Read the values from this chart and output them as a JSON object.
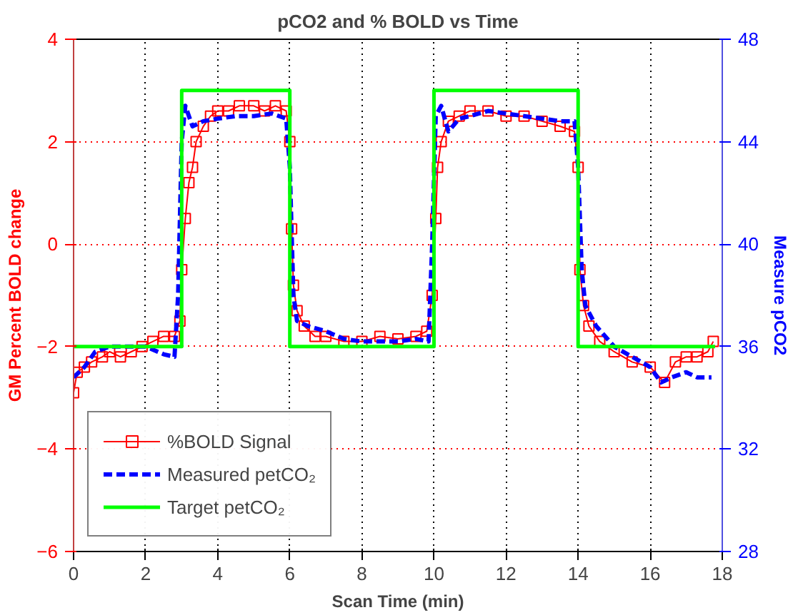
{
  "chart_data": {
    "type": "line",
    "title": "pCO2 and % BOLD vs Time",
    "xlabel": "Scan Time (min)",
    "ylabel": "GM Percent BOLD change",
    "y2label": "Measure pCO2",
    "xlim": [
      0,
      18
    ],
    "xticks": [
      0,
      2,
      4,
      6,
      8,
      10,
      12,
      14,
      16,
      18
    ],
    "ylim": [
      -6,
      4
    ],
    "yticks": [
      -6,
      -4,
      -2,
      0,
      2,
      4
    ],
    "y2lim": [
      28,
      48
    ],
    "y2ticks": [
      28,
      32,
      36,
      40,
      44,
      48
    ],
    "grid": true,
    "legend": "bottom left",
    "series": [
      {
        "name": "%BOLD Signal",
        "color": "#ff0000",
        "marker": "square",
        "line_style": "solid",
        "x": [
          0,
          0.1,
          0.3,
          0.5,
          0.8,
          1.0,
          1.3,
          1.6,
          1.9,
          2.2,
          2.5,
          2.8,
          2.95,
          3.0,
          3.1,
          3.2,
          3.3,
          3.4,
          3.6,
          3.8,
          4.0,
          4.3,
          4.6,
          5.0,
          5.3,
          5.6,
          5.9,
          6.0,
          6.05,
          6.1,
          6.2,
          6.4,
          6.7,
          7.0,
          7.5,
          8.0,
          8.5,
          9.0,
          9.5,
          9.8,
          9.95,
          10.05,
          10.1,
          10.2,
          10.4,
          10.7,
          11.0,
          11.5,
          12.0,
          12.5,
          13.0,
          13.5,
          13.9,
          14.0,
          14.05,
          14.15,
          14.3,
          14.6,
          15.0,
          15.5,
          16.0,
          16.4,
          16.7,
          17.0,
          17.3,
          17.6,
          17.75
        ],
        "values": [
          -2.9,
          -2.5,
          -2.4,
          -2.3,
          -2.2,
          -2.1,
          -2.2,
          -2.1,
          -2.0,
          -1.9,
          -1.8,
          -1.8,
          -1.5,
          -0.5,
          0.5,
          1.2,
          1.5,
          2.0,
          2.3,
          2.5,
          2.6,
          2.6,
          2.7,
          2.7,
          2.6,
          2.7,
          2.6,
          2.0,
          0.3,
          -0.8,
          -1.3,
          -1.6,
          -1.8,
          -1.8,
          -1.9,
          -1.9,
          -1.8,
          -1.85,
          -1.8,
          -1.7,
          -1.0,
          0.5,
          1.5,
          2.0,
          2.4,
          2.5,
          2.6,
          2.6,
          2.5,
          2.5,
          2.4,
          2.3,
          2.2,
          1.5,
          -0.5,
          -1.2,
          -1.6,
          -1.9,
          -2.1,
          -2.3,
          -2.4,
          -2.7,
          -2.3,
          -2.2,
          -2.2,
          -2.1,
          -1.9
        ]
      },
      {
        "name": "Measured petCO₂",
        "color": "#0000ff",
        "axis": "y2",
        "marker": "none",
        "line_style": "dashed",
        "x": [
          0,
          0.3,
          0.6,
          1.0,
          1.5,
          2.0,
          2.5,
          2.8,
          2.9,
          3.0,
          3.1,
          3.3,
          3.6,
          4.0,
          4.5,
          5.0,
          5.5,
          5.9,
          6.0,
          6.1,
          6.2,
          6.5,
          7.0,
          7.5,
          8.0,
          8.5,
          9.0,
          9.5,
          9.85,
          9.95,
          10.05,
          10.2,
          10.4,
          10.7,
          11.0,
          11.5,
          12.0,
          12.5,
          13.0,
          13.5,
          13.9,
          14.0,
          14.1,
          14.2,
          14.5,
          15.0,
          15.5,
          16.0,
          16.3,
          16.6,
          17.0,
          17.3,
          17.7
        ],
        "values": [
          34.8,
          35.2,
          35.8,
          36.0,
          36.0,
          36.0,
          35.7,
          35.6,
          38,
          44,
          45.4,
          44.6,
          44.8,
          44.9,
          45.0,
          45.0,
          45.1,
          44.9,
          43,
          38,
          37,
          36.8,
          36.6,
          36.3,
          36.2,
          36.2,
          36.2,
          36.3,
          36.2,
          40,
          45,
          45.4,
          44.4,
          44.9,
          45.0,
          45.2,
          45.1,
          45.0,
          44.9,
          44.8,
          44.8,
          43,
          39,
          37.6,
          36.8,
          36.0,
          35.6,
          35.2,
          34.6,
          34.8,
          35.0,
          34.8,
          34.8
        ]
      },
      {
        "name": "Target petCO₂",
        "color": "#00ff00",
        "axis": "y2",
        "marker": "none",
        "line_style": "solid",
        "x": [
          0,
          3,
          3,
          6,
          6,
          10,
          10,
          14,
          14,
          17.8
        ],
        "values": [
          36,
          36,
          46,
          46,
          36,
          36,
          46,
          46,
          36,
          36
        ]
      }
    ]
  }
}
